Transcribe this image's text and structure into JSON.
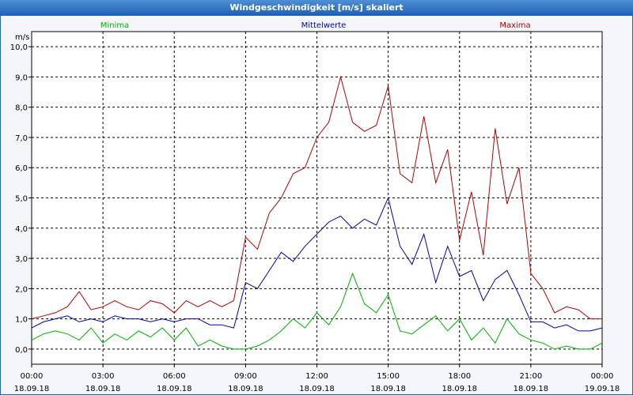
{
  "window": {
    "title": "Windgeschwindigkeit [m/s] skaliert"
  },
  "chart_data": {
    "type": "line",
    "title": "Windgeschwindigkeit [m/s] skaliert",
    "ylabel": "m/s",
    "ylim": [
      -0.5,
      10.5
    ],
    "yticks": [
      0,
      1,
      2,
      3,
      4,
      5,
      6,
      7,
      8,
      9,
      10
    ],
    "ytick_labels": [
      "0,0",
      "1,0",
      "2,0",
      "3,0",
      "4,0",
      "5,0",
      "6,0",
      "7,0",
      "8,0",
      "9,0",
      "10,0"
    ],
    "xlim": [
      0,
      24
    ],
    "xticks": [
      0,
      3,
      6,
      9,
      12,
      15,
      18,
      21,
      24
    ],
    "xtick_labels": [
      {
        "time": "00:00",
        "date": "18.09.18"
      },
      {
        "time": "03:00",
        "date": "18.09.18"
      },
      {
        "time": "06:00",
        "date": "18.09.18"
      },
      {
        "time": "09:00",
        "date": "18.09.18"
      },
      {
        "time": "12:00",
        "date": "18.09.18"
      },
      {
        "time": "15:00",
        "date": "18.09.18"
      },
      {
        "time": "18:00",
        "date": "18.09.18"
      },
      {
        "time": "21:00",
        "date": "18.09.18"
      },
      {
        "time": "00:00",
        "date": "19.09.18"
      }
    ],
    "grid": true,
    "legend": "top",
    "series": [
      {
        "name": "Minima",
        "color": "#00b000",
        "x": [
          0,
          0.5,
          1,
          1.5,
          2,
          2.5,
          3,
          3.5,
          4,
          4.5,
          5,
          5.5,
          6,
          6.5,
          7,
          7.5,
          8,
          8.5,
          9,
          9.5,
          10,
          10.5,
          11,
          11.5,
          12,
          12.5,
          13,
          13.5,
          14,
          14.5,
          15,
          15.5,
          16,
          16.5,
          17,
          17.5,
          18,
          18.5,
          19,
          19.5,
          20,
          20.5,
          21,
          21.5,
          22,
          22.5,
          23,
          23.5,
          24
        ],
        "values": [
          0.3,
          0.5,
          0.6,
          0.5,
          0.3,
          0.7,
          0.2,
          0.5,
          0.3,
          0.6,
          0.4,
          0.7,
          0.3,
          0.7,
          0.1,
          0.3,
          0.1,
          0.0,
          0.0,
          0.1,
          0.3,
          0.6,
          1.0,
          0.7,
          1.2,
          0.8,
          1.4,
          2.5,
          1.5,
          1.2,
          1.8,
          0.6,
          0.5,
          0.8,
          1.1,
          0.6,
          1.0,
          0.3,
          0.7,
          0.2,
          1.0,
          0.5,
          0.3,
          0.2,
          0.0,
          0.1,
          0.0,
          0.0,
          0.2
        ]
      },
      {
        "name": "Mittelwerte",
        "color": "#0000b0",
        "x": [
          0,
          0.5,
          1,
          1.5,
          2,
          2.5,
          3,
          3.5,
          4,
          4.5,
          5,
          5.5,
          6,
          6.5,
          7,
          7.5,
          8,
          8.5,
          9,
          9.5,
          10,
          10.5,
          11,
          11.5,
          12,
          12.5,
          13,
          13.5,
          14,
          14.5,
          15,
          15.5,
          16,
          16.5,
          17,
          17.5,
          18,
          18.5,
          19,
          19.5,
          20,
          20.5,
          21,
          21.5,
          22,
          22.5,
          23,
          23.5,
          24
        ],
        "values": [
          0.7,
          0.9,
          1.0,
          1.1,
          0.9,
          1.0,
          0.9,
          1.1,
          1.0,
          1.0,
          0.9,
          1.0,
          0.9,
          1.0,
          1.0,
          0.8,
          0.8,
          0.7,
          2.2,
          2.0,
          2.6,
          3.2,
          2.9,
          3.4,
          3.8,
          4.2,
          4.4,
          4.0,
          4.3,
          4.1,
          5.0,
          3.4,
          2.8,
          3.8,
          2.2,
          3.4,
          2.4,
          2.6,
          1.6,
          2.3,
          2.6,
          1.8,
          0.9,
          0.9,
          0.7,
          0.8,
          0.6,
          0.6,
          0.7
        ]
      },
      {
        "name": "Maxima",
        "color": "#b00000",
        "x": [
          0,
          0.5,
          1,
          1.5,
          2,
          2.5,
          3,
          3.5,
          4,
          4.5,
          5,
          5.5,
          6,
          6.5,
          7,
          7.5,
          8,
          8.5,
          9,
          9.5,
          10,
          10.5,
          11,
          11.5,
          12,
          12.5,
          13,
          13.5,
          14,
          14.5,
          15,
          15.5,
          16,
          16.5,
          17,
          17.5,
          18,
          18.5,
          19,
          19.5,
          20,
          20.5,
          21,
          21.5,
          22,
          22.5,
          23,
          23.5,
          24
        ],
        "values": [
          1.0,
          1.1,
          1.2,
          1.4,
          1.9,
          1.3,
          1.4,
          1.6,
          1.4,
          1.3,
          1.6,
          1.5,
          1.2,
          1.6,
          1.4,
          1.6,
          1.4,
          1.6,
          3.7,
          3.3,
          4.5,
          5.0,
          5.8,
          6.0,
          7.0,
          7.5,
          9.0,
          7.5,
          7.2,
          7.4,
          8.7,
          5.8,
          5.5,
          7.7,
          5.5,
          6.6,
          3.6,
          5.2,
          3.1,
          7.3,
          4.8,
          6.0,
          2.5,
          2.0,
          1.2,
          1.4,
          1.3,
          1.0,
          1.0
        ]
      }
    ]
  }
}
